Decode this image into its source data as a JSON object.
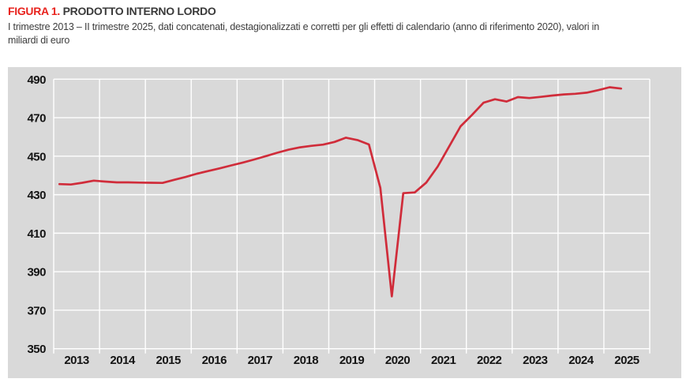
{
  "figure": {
    "label": "FIGURA 1.",
    "title": "PRODOTTO INTERNO LORDO",
    "subtitle_lines": [
      "I trimestre 2013 – II trimestre 2025, dati concatenati, destagionalizzati e corretti per gli effetti di calendario (anno di riferimento 2020), valori in",
      "miliardi di euro"
    ]
  },
  "colors": {
    "accent_red": "#e8231e",
    "line_red": "#d02c3a",
    "plot_background": "#d9d9d9",
    "gridline": "#ffffff",
    "axis_label": "#141414"
  },
  "chart_data": {
    "type": "line",
    "title": "Prodotto interno lordo",
    "ylabel": "miliardi di euro",
    "ylim": [
      350,
      490
    ],
    "y_ticks": [
      490,
      470,
      450,
      430,
      410,
      390,
      370,
      350
    ],
    "x_tick_labels": [
      "2013",
      "2014",
      "2015",
      "2016",
      "2017",
      "2018",
      "2019",
      "2020",
      "2021",
      "2022",
      "2023",
      "2024",
      "2025"
    ],
    "x_years_span": 13,
    "quarters_per_year": 4,
    "grid": true,
    "legend": "none",
    "series": [
      {
        "name": "PIL (dati concatenati, destagionalizzati e corretti per gli effetti di calendario)",
        "start": "2013-Q1",
        "end": "2025-Q2",
        "values": [
          435.5,
          435.3,
          436.2,
          437.3,
          436.8,
          436.4,
          436.4,
          436.3,
          436.2,
          436.1,
          437.7,
          439.2,
          440.9,
          442.3,
          443.7,
          445.2,
          446.7,
          448.3,
          450.0,
          451.8,
          453.4,
          454.6,
          455.4,
          456.0,
          457.4,
          459.6,
          458.4,
          456.1,
          433.5,
          377.2,
          430.8,
          431.2,
          436.3,
          444.6,
          455.0,
          465.5,
          471.5,
          477.8,
          479.6,
          478.4,
          480.7,
          480.2,
          480.8,
          481.5,
          482.1,
          482.4,
          483.0,
          484.3,
          485.8,
          485.1
        ]
      }
    ]
  }
}
